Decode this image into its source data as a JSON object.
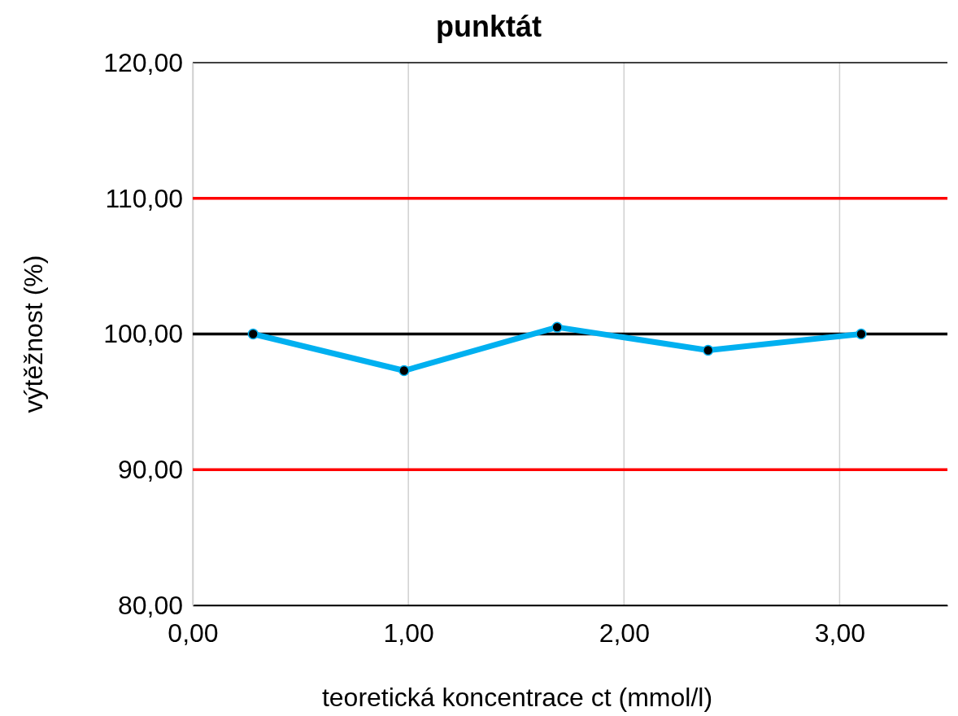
{
  "chart_data": {
    "type": "line",
    "title": "punktát",
    "xlabel": "teoretická koncentrace  ct (mmol/l)",
    "ylabel": "výtěžnost (%)",
    "x": [
      0.28,
      0.98,
      1.69,
      2.39,
      3.1
    ],
    "series": [
      {
        "color": "#00b0f0",
        "values": [
          100.0,
          97.3,
          100.5,
          98.8,
          100.0
        ]
      }
    ],
    "marker": "circle",
    "line_style": "solid",
    "grid": true,
    "xlim": [
      0,
      3.5
    ],
    "xticks": [
      {
        "value": 0,
        "label": "0,00"
      },
      {
        "value": 1,
        "label": "1,00"
      },
      {
        "value": 2,
        "label": "2,00"
      },
      {
        "value": 3,
        "label": "3,00"
      }
    ],
    "ylim": [
      80,
      120
    ],
    "yticks": [
      {
        "value": 80,
        "label": "80,00"
      },
      {
        "value": 90,
        "label": "90,00"
      },
      {
        "value": 100,
        "label": "100,00"
      },
      {
        "value": 110,
        "label": "110,00"
      },
      {
        "value": 120,
        "label": "120,00"
      }
    ],
    "ref_lines": [
      {
        "axis": "y",
        "value": 110,
        "color": "#ff0000"
      },
      {
        "axis": "y",
        "value": 100,
        "color": "#000000"
      },
      {
        "axis": "y",
        "value": 90,
        "color": "#ff0000"
      }
    ]
  }
}
